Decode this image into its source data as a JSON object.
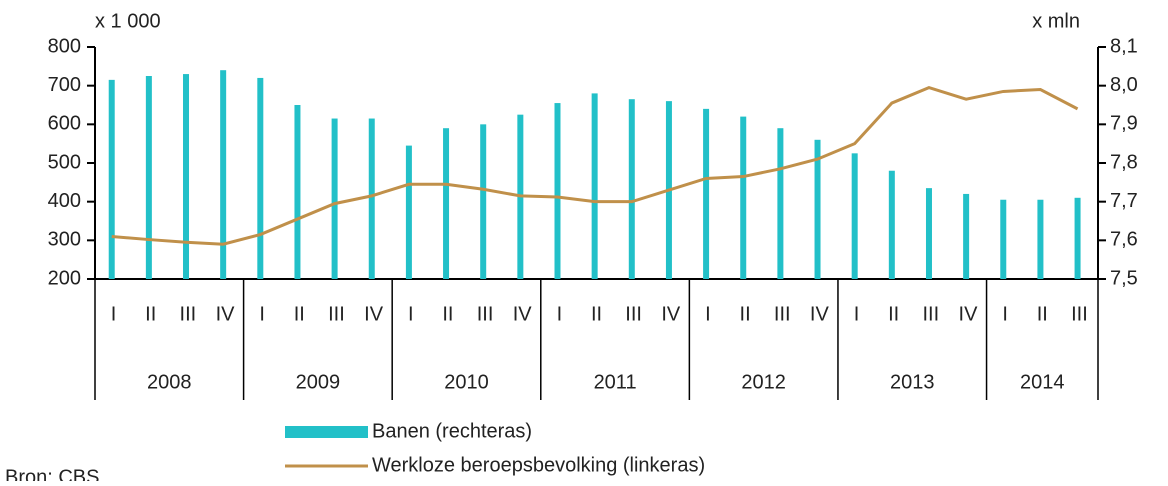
{
  "chart_data": {
    "type": "bar-line",
    "ylabel": "x 1 000",
    "y2label": "x mln",
    "source": "Bron: CBS",
    "categories": [
      "I",
      "II",
      "III",
      "IV",
      "I",
      "II",
      "III",
      "IV",
      "I",
      "II",
      "III",
      "IV",
      "I",
      "II",
      "III",
      "IV",
      "I",
      "II",
      "III",
      "IV",
      "I",
      "II",
      "III",
      "IV",
      "I",
      "II",
      "III"
    ],
    "years": [
      "2008",
      "2009",
      "2010",
      "2011",
      "2012",
      "2013",
      "2014"
    ],
    "ylim": [
      200,
      800
    ],
    "yticks": [
      200,
      300,
      400,
      500,
      600,
      700,
      800
    ],
    "y2lim": [
      7.5,
      8.1
    ],
    "y2ticks": [
      {
        "value": 7.5,
        "label": "7,5"
      },
      {
        "value": 7.6,
        "label": "7,6"
      },
      {
        "value": 7.7,
        "label": "7,7"
      },
      {
        "value": 7.8,
        "label": "7,8"
      },
      {
        "value": 7.9,
        "label": "7,9"
      },
      {
        "value": 8.0,
        "label": "8,0"
      },
      {
        "value": 8.1,
        "label": "8,1"
      }
    ],
    "series": [
      {
        "name": "Banen (rechteras)",
        "kind": "bar",
        "axis": "y2",
        "color": "#22c0c8",
        "values": [
          8.015,
          8.025,
          8.03,
          8.04,
          8.02,
          7.95,
          7.915,
          7.915,
          7.845,
          7.89,
          7.9,
          7.925,
          7.955,
          7.98,
          7.965,
          7.96,
          7.94,
          7.92,
          7.89,
          7.86,
          7.825,
          7.78,
          7.735,
          7.72,
          7.705,
          7.705,
          7.71
        ]
      },
      {
        "name": "Werkloze beroepsbevolking (linkeras)",
        "kind": "line",
        "axis": "y",
        "color": "#c0904a",
        "values": [
          310,
          302,
          295,
          290,
          315,
          355,
          395,
          415,
          445,
          445,
          432,
          415,
          412,
          400,
          400,
          430,
          460,
          465,
          485,
          510,
          550,
          655,
          695,
          665,
          685,
          690,
          640
        ]
      }
    ]
  }
}
